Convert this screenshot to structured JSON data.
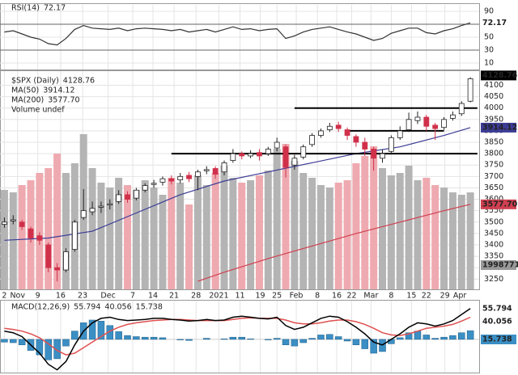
{
  "chart_data": [
    {
      "type": "line",
      "title": "RSI(14)",
      "value_label": "72.17",
      "color": "#333333",
      "values": [
        58,
        60,
        55,
        50,
        47,
        40,
        38,
        48,
        62,
        68,
        64,
        63,
        62,
        64,
        60,
        63,
        64,
        63,
        62,
        60,
        62,
        58,
        60,
        62,
        58,
        62,
        66,
        62,
        63,
        60,
        62,
        63,
        48,
        52,
        58,
        62,
        64,
        66,
        62,
        58,
        55,
        50,
        45,
        48,
        56,
        60,
        64,
        64,
        57,
        55,
        60,
        63,
        68,
        72.17
      ],
      "xlim": [
        -0.5,
        54
      ],
      "ylim": [
        0,
        100
      ],
      "yticks": [
        10,
        30,
        50,
        70,
        90
      ],
      "ref_lines": [
        70,
        30
      ],
      "grid": true
    },
    {
      "type": "candlestick",
      "title": "$SPX (Daily)",
      "value_label": "4128.76",
      "up_color": "#ffffff",
      "down_color": "#d0304a",
      "open": [
        3490,
        3505,
        3500,
        3470,
        3440,
        3400,
        3300,
        3290,
        3380,
        3520,
        3545,
        3565,
        3575,
        3590,
        3620,
        3605,
        3640,
        3665,
        3675,
        3690,
        3685,
        3705,
        3700,
        3725,
        3735,
        3720,
        3770,
        3800,
        3790,
        3805,
        3800,
        3825,
        3830,
        3750,
        3785,
        3840,
        3880,
        3905,
        3925,
        3905,
        3875,
        3850,
        3820,
        3780,
        3810,
        3870,
        3905,
        3945,
        3960,
        3925,
        3915,
        3955,
        3975,
        4030
      ],
      "high": [
        3520,
        3530,
        3510,
        3480,
        3455,
        3410,
        3320,
        3385,
        3510,
        3645,
        3590,
        3590,
        3600,
        3640,
        3635,
        3650,
        3670,
        3685,
        3700,
        3705,
        3715,
        3720,
        3730,
        3745,
        3745,
        3770,
        3820,
        3810,
        3815,
        3820,
        3830,
        3870,
        3840,
        3795,
        3840,
        3890,
        3910,
        3935,
        3940,
        3915,
        3885,
        3870,
        3830,
        3820,
        3880,
        3920,
        3980,
        3985,
        3970,
        3935,
        3960,
        3985,
        4030,
        4135
      ],
      "low": [
        3475,
        3490,
        3465,
        3410,
        3400,
        3280,
        3240,
        3280,
        3370,
        3510,
        3530,
        3540,
        3555,
        3580,
        3585,
        3595,
        3630,
        3650,
        3660,
        3665,
        3670,
        3675,
        3640,
        3710,
        3690,
        3705,
        3760,
        3775,
        3780,
        3770,
        3790,
        3810,
        3695,
        3730,
        3775,
        3830,
        3870,
        3895,
        3895,
        3860,
        3830,
        3790,
        3725,
        3760,
        3800,
        3860,
        3895,
        3930,
        3900,
        3860,
        3905,
        3945,
        3965,
        4025
      ],
      "close": [
        3500,
        3510,
        3480,
        3430,
        3420,
        3300,
        3290,
        3370,
        3500,
        3550,
        3560,
        3570,
        3580,
        3620,
        3600,
        3640,
        3660,
        3670,
        3690,
        3680,
        3700,
        3690,
        3720,
        3730,
        3710,
        3760,
        3800,
        3790,
        3800,
        3790,
        3820,
        3850,
        3740,
        3780,
        3830,
        3880,
        3900,
        3920,
        3910,
        3880,
        3850,
        3820,
        3780,
        3800,
        3870,
        3900,
        3950,
        3960,
        3920,
        3910,
        3950,
        3970,
        4020,
        4128.76
      ],
      "series": [
        {
          "name": "MA(50)",
          "value_label": "3914.12",
          "color": "#3c3c96",
          "x": [
            0,
            5,
            10,
            15,
            20,
            25,
            30,
            35,
            40,
            45,
            50,
            53
          ],
          "values": [
            3420,
            3430,
            3460,
            3540,
            3620,
            3680,
            3720,
            3760,
            3800,
            3830,
            3880,
            3914.12
          ]
        },
        {
          "name": "MA(200)",
          "value_label": "3577.70",
          "color": "#d04050",
          "x": [
            22,
            25,
            30,
            35,
            40,
            45,
            50,
            53
          ],
          "values": [
            3240,
            3280,
            3340,
            3395,
            3450,
            3500,
            3550,
            3577.7
          ]
        }
      ],
      "volume": {
        "name": "Volume undef",
        "value_label": "1998771",
        "up_color": "#b4b4b4",
        "down_color": "#eeaab0",
        "ylim": [
          0,
          4500000
        ],
        "values": [
          2050000,
          2000000,
          2150000,
          2250000,
          2400000,
          2500000,
          2800000,
          2400000,
          2600000,
          3200000,
          2500000,
          2200000,
          2100000,
          2300000,
          2150000,
          2050000,
          2250000,
          2100000,
          1950000,
          2300000,
          2200000,
          1750000,
          2350000,
          2150000,
          2400000,
          2550000,
          2300000,
          2200000,
          2250000,
          2350000,
          2450000,
          2900000,
          3000000,
          2650000,
          2400000,
          2300000,
          2150000,
          2100000,
          2200000,
          2250000,
          2600000,
          2750000,
          2950000,
          2500000,
          2350000,
          2400000,
          2550000,
          2250000,
          2300000,
          2150000,
          2100000,
          2000000,
          1950000,
          1998771
        ]
      },
      "hlines": [
        {
          "value": 4000,
          "x": [
            33,
            53.8
          ]
        },
        {
          "value": 3900,
          "x": [
            39,
            50
          ]
        },
        {
          "value": 3800,
          "x": [
            19,
            53.8
          ]
        }
      ],
      "xlim": [
        -0.5,
        54
      ],
      "ylim": [
        3205,
        4162
      ],
      "yticks": [
        3250,
        3300,
        3350,
        3400,
        3450,
        3500,
        3550,
        3600,
        3650,
        3700,
        3750,
        3800,
        3850,
        3900,
        3950,
        4000,
        4050,
        4100
      ],
      "xticks": [
        {
          "value": 0,
          "label": "2"
        },
        {
          "value": 1.5,
          "label": "Nov"
        },
        {
          "value": 3.8,
          "label": "9"
        },
        {
          "value": 6.4,
          "label": "16"
        },
        {
          "value": 8.9,
          "label": "23"
        },
        {
          "value": 11.8,
          "label": "Dec"
        },
        {
          "value": 14.6,
          "label": "7"
        },
        {
          "value": 16.9,
          "label": "14"
        },
        {
          "value": 19.3,
          "label": "21"
        },
        {
          "value": 21.8,
          "label": "28"
        },
        {
          "value": 24.4,
          "label": "2021"
        },
        {
          "value": 26.8,
          "label": "11"
        },
        {
          "value": 29.1,
          "label": "19"
        },
        {
          "value": 31,
          "label": "25"
        },
        {
          "value": 33.2,
          "label": "Feb"
        },
        {
          "value": 35.6,
          "label": "8"
        },
        {
          "value": 37.8,
          "label": "16"
        },
        {
          "value": 39.5,
          "label": "22"
        },
        {
          "value": 41.7,
          "label": "Mar"
        },
        {
          "value": 44,
          "label": "8"
        },
        {
          "value": 46.3,
          "label": "15"
        },
        {
          "value": 48,
          "label": "22"
        },
        {
          "value": 50.1,
          "label": "29"
        },
        {
          "value": 51.8,
          "label": "Apr"
        }
      ],
      "grid": true
    },
    {
      "type": "macd",
      "title": "MACD(12,26,9)",
      "xlim": [
        -0.5,
        54
      ],
      "ylim": [
        -60,
        70
      ],
      "series": [
        {
          "value_label": "55.794",
          "color": "#000000",
          "values": [
            15,
            12,
            5,
            -10,
            -25,
            -45,
            -55,
            -40,
            -10,
            15,
            30,
            38,
            40,
            36,
            34,
            35,
            36,
            38,
            38,
            36,
            35,
            33,
            34,
            36,
            34,
            35,
            40,
            42,
            40,
            38,
            37,
            40,
            25,
            18,
            22,
            30,
            38,
            42,
            40,
            32,
            22,
            10,
            -5,
            -10,
            0,
            10,
            22,
            30,
            28,
            24,
            28,
            34,
            45,
            55.794
          ]
        },
        {
          "value_label": "40.056",
          "color": "#e05050",
          "values": [
            20,
            18,
            15,
            10,
            3,
            -8,
            -20,
            -28,
            -25,
            -15,
            -5,
            5,
            15,
            22,
            27,
            30,
            32,
            34,
            35,
            36,
            36,
            35,
            34,
            34,
            34,
            34,
            36,
            38,
            39,
            38,
            38,
            38,
            35,
            30,
            28,
            28,
            30,
            33,
            35,
            35,
            32,
            27,
            20,
            12,
            8,
            7,
            10,
            15,
            20,
            22,
            24,
            27,
            33,
            40.056
          ]
        },
        {
          "value_label": "15.738",
          "color": "#3b8fc4",
          "values": [
            -5,
            -6,
            -10,
            -20,
            -28,
            -37,
            -35,
            -12,
            15,
            30,
            35,
            33,
            25,
            14,
            7,
            5,
            4,
            4,
            3,
            0,
            -1,
            -2,
            0,
            2,
            0,
            1,
            4,
            4,
            1,
            0,
            -1,
            2,
            -10,
            -12,
            -6,
            2,
            8,
            9,
            5,
            -3,
            -10,
            -17,
            -25,
            -22,
            -8,
            3,
            12,
            15,
            8,
            2,
            4,
            7,
            12,
            15.738
          ]
        }
      ]
    }
  ]
}
